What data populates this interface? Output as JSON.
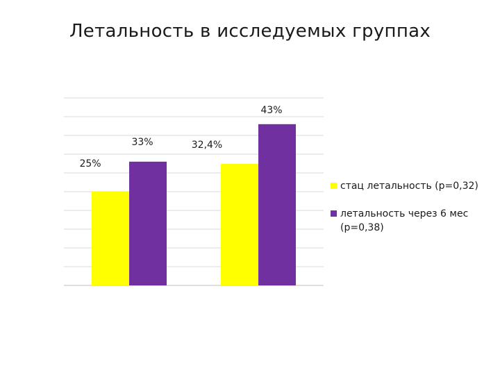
{
  "chart_data": {
    "type": "bar",
    "title": "Летальность в исследуемых группах",
    "categories": [
      "",
      ""
    ],
    "series": [
      {
        "name": "стац летальность (р=0,32)",
        "color": "#ffff00",
        "values": [
          25,
          32.4
        ],
        "labels": [
          "25%",
          "32,4%"
        ]
      },
      {
        "name": "летальность через 6 мес (р=0,38)",
        "color": "#7030a0",
        "values": [
          33,
          43
        ],
        "labels": [
          "33%",
          "43%"
        ]
      }
    ],
    "ylim": [
      0,
      50
    ],
    "grid": true,
    "legend_position": "right"
  }
}
